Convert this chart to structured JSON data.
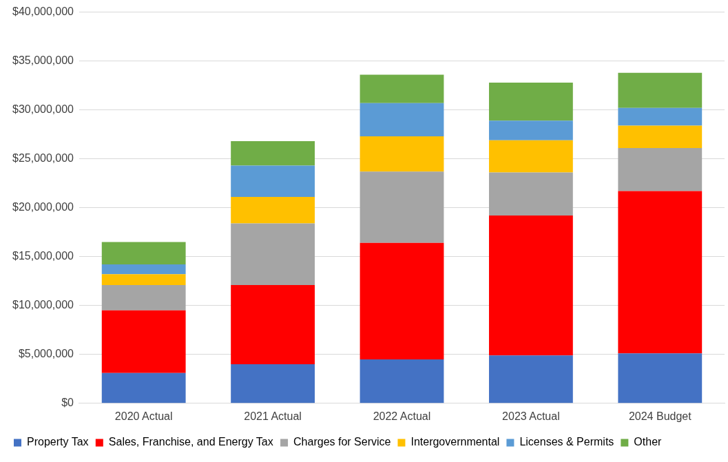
{
  "chart_data": {
    "type": "bar",
    "stacked": true,
    "categories": [
      "2020 Actual",
      "2021 Actual",
      "2022 Actual",
      "2023 Actual",
      "2024 Budget"
    ],
    "series": [
      {
        "name": "Property Tax",
        "color": "#4472c4",
        "values": [
          3100000,
          4000000,
          4500000,
          4900000,
          5100000
        ]
      },
      {
        "name": "Sales, Franchise, and Energy Tax",
        "color": "#ff0000",
        "values": [
          6400000,
          8100000,
          11900000,
          14300000,
          16600000
        ]
      },
      {
        "name": "Charges for Service",
        "color": "#a5a5a5",
        "values": [
          2600000,
          6300000,
          7300000,
          4400000,
          4400000
        ]
      },
      {
        "name": "Intergovernmental",
        "color": "#ffc000",
        "values": [
          1100000,
          2700000,
          3600000,
          3300000,
          2300000
        ]
      },
      {
        "name": "Licenses & Permits",
        "color": "#5b9bd5",
        "values": [
          1000000,
          3200000,
          3400000,
          2000000,
          1800000
        ]
      },
      {
        "name": "Other",
        "color": "#70ad47",
        "values": [
          2300000,
          2500000,
          2900000,
          3900000,
          3600000
        ]
      }
    ],
    "ylim": [
      0,
      40000000
    ],
    "yticks": [
      {
        "value": 0,
        "label": "$0"
      },
      {
        "value": 5000000,
        "label": "$5,000,000"
      },
      {
        "value": 10000000,
        "label": "$10,000,000"
      },
      {
        "value": 15000000,
        "label": "$15,000,000"
      },
      {
        "value": 20000000,
        "label": "$20,000,000"
      },
      {
        "value": 25000000,
        "label": "$25,000,000"
      },
      {
        "value": 30000000,
        "label": "$30,000,000"
      },
      {
        "value": 35000000,
        "label": "$35,000,000"
      },
      {
        "value": 40000000,
        "label": "$40,000,000"
      }
    ],
    "grid": "y",
    "legend": "bottom"
  }
}
